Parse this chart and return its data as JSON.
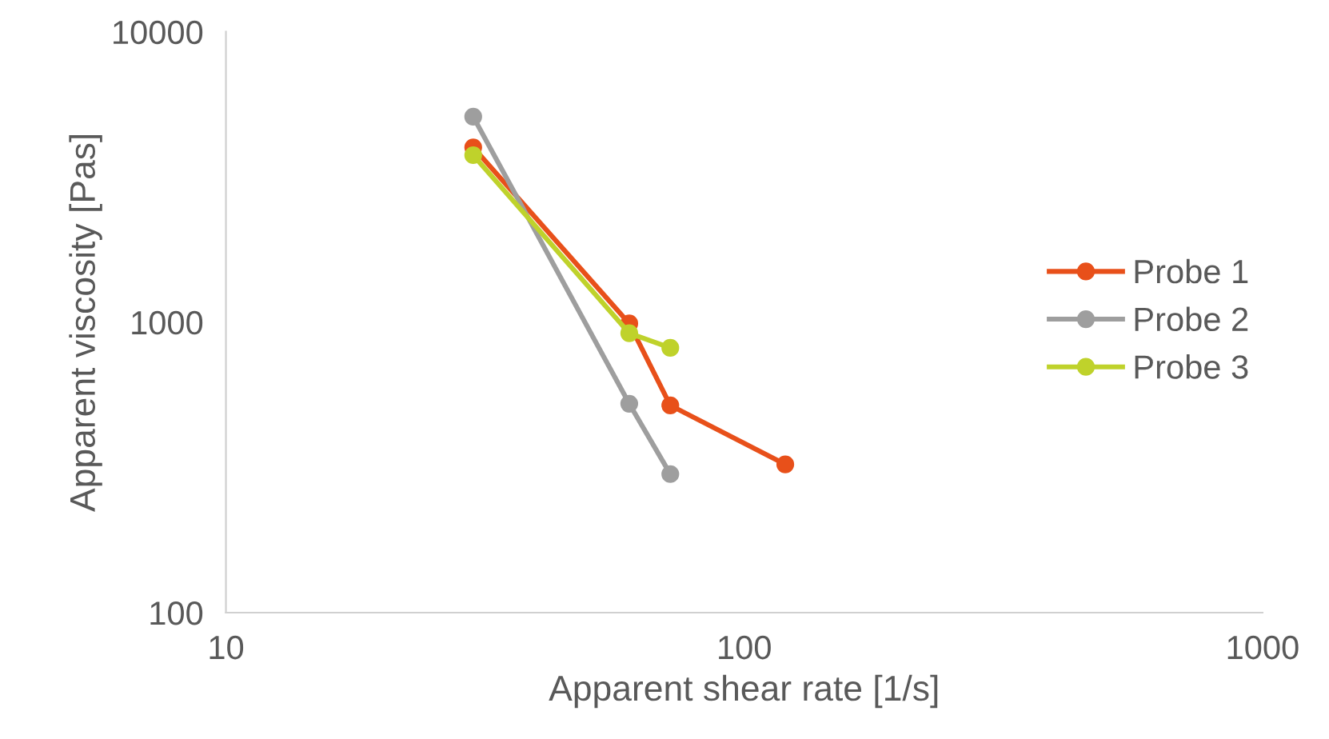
{
  "chart_data": {
    "type": "line",
    "xlabel": "Apparent shear rate [1/s]",
    "ylabel": "Apparent viscosity [Pas]",
    "log": "xy",
    "xlim": [
      10,
      1000
    ],
    "xticks": [
      10,
      100,
      1000
    ],
    "ylim": [
      100,
      10000
    ],
    "yticks": [
      100,
      1000,
      10000
    ],
    "grid": false,
    "legend": "right",
    "marker": "circle",
    "line_style": "solid",
    "series": [
      {
        "name": "Probe 1",
        "color": "#e8501a",
        "x": [
          30,
          60,
          72,
          120
        ],
        "values": [
          4000,
          990,
          517,
          324
        ]
      },
      {
        "name": "Probe 2",
        "color": "#9e9e9e",
        "x": [
          30,
          60,
          72
        ],
        "values": [
          5100,
          524,
          300
        ]
      },
      {
        "name": "Probe 3",
        "color": "#bfd22b",
        "x": [
          30,
          60,
          72
        ],
        "values": [
          3760,
          917,
          816
        ]
      }
    ]
  }
}
